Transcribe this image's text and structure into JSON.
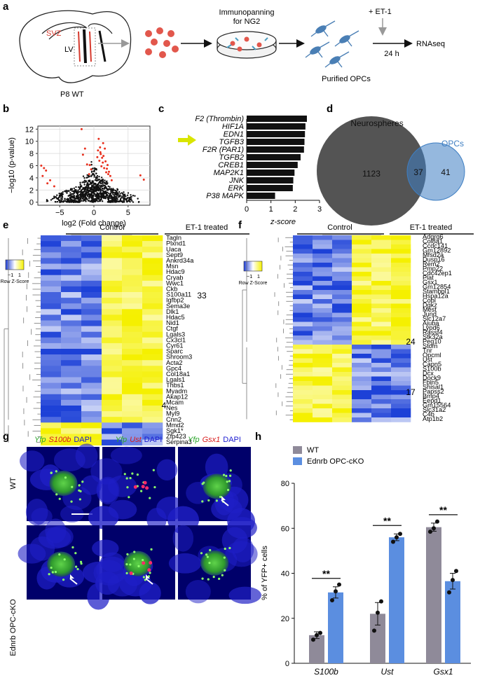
{
  "figure": {
    "panel_labels": [
      "a",
      "b",
      "c",
      "d",
      "e",
      "f",
      "g",
      "h"
    ]
  },
  "panel_a": {
    "svz_label": "SVZ",
    "lv_label": "LV",
    "brain_label": "P8 WT",
    "immunopanning_title": "Immunopanning",
    "immunopanning_subtitle": "for NG2",
    "et1_label": "+ ET-1",
    "opc_label": "Purified OPCs",
    "time_label": "24 h",
    "rnaseq_label": "RNAseq"
  },
  "panel_b": {
    "chart_data": {
      "type": "scatter",
      "title": "",
      "xlabel": "log2 (Fold change)",
      "ylabel": "−log10 (p-value)",
      "xticks": [
        "−5",
        "0",
        "5"
      ],
      "yticks": [
        "0",
        "2",
        "4",
        "6",
        "8",
        "10",
        "12"
      ],
      "xlim": [
        -8.2,
        8.2
      ],
      "ylim": [
        -0.5,
        12.5
      ],
      "grid": true,
      "highlight_color": "#e8311f",
      "points_sig": [
        [
          -7.7,
          6.0
        ],
        [
          -7.5,
          4.3
        ],
        [
          -7.3,
          5.6
        ],
        [
          -7.0,
          5.2
        ],
        [
          -6.8,
          3.1
        ],
        [
          -6.4,
          3.6
        ],
        [
          -5.8,
          2.6
        ],
        [
          -1.8,
          12.0
        ],
        [
          -1.6,
          7.8
        ],
        [
          -1.3,
          8.8
        ],
        [
          -1.0,
          6.2
        ],
        [
          -0.7,
          4.6
        ],
        [
          -0.6,
          6.1
        ],
        [
          -0.4,
          5.4
        ],
        [
          0.5,
          7.4
        ],
        [
          0.6,
          8.5
        ],
        [
          0.7,
          10.4
        ],
        [
          0.8,
          6.8
        ],
        [
          0.9,
          9.0
        ],
        [
          1.0,
          7.9
        ],
        [
          1.1,
          5.9
        ],
        [
          1.2,
          7.3
        ],
        [
          1.3,
          6.5
        ],
        [
          1.4,
          7.6
        ],
        [
          1.5,
          5.6
        ],
        [
          1.6,
          8.8
        ],
        [
          1.7,
          6.7
        ],
        [
          1.8,
          4.9
        ],
        [
          1.9,
          5.5
        ],
        [
          2.0,
          6.1
        ],
        [
          2.1,
          4.6
        ],
        [
          2.2,
          5.0
        ],
        [
          2.4,
          4.3
        ],
        [
          2.6,
          3.6
        ],
        [
          1.35,
          9.7
        ],
        [
          0.95,
          8.2
        ],
        [
          6.8,
          4.4
        ],
        [
          7.3,
          3.7
        ]
      ]
    }
  },
  "panel_c": {
    "chart_data": {
      "type": "bar",
      "orientation": "horizontal",
      "categories": [
        "F2 (Thrombin)",
        "HIF1A",
        "EDN1",
        "TGFB3",
        "F2R (PAR1)",
        "TGFB2",
        "CREB1",
        "MAP2K1",
        "JNK",
        "ERK",
        "P38 MAPK"
      ],
      "values": [
        2.48,
        2.42,
        2.4,
        2.38,
        2.36,
        2.22,
        2.1,
        1.97,
        1.92,
        1.9,
        1.17
      ],
      "xlabel": "z-score",
      "xticks": [
        "0",
        "1",
        "2",
        "3"
      ],
      "xlim": [
        0,
        3
      ],
      "highlight": "EDN1",
      "highlight_color": "#d9e500"
    }
  },
  "panel_d": {
    "chart_data": {
      "type": "venn",
      "sets": [
        {
          "name": "Neurospheres",
          "only": 1123,
          "color": "#545454"
        },
        {
          "name": "OPCs",
          "only": 41,
          "color": "#3e7ec2"
        }
      ],
      "intersection": 37
    }
  },
  "panel_e": {
    "control_label": "Control",
    "treated_label": "ET-1 treated",
    "legend_low": "−1",
    "legend_high": "1",
    "legend_title": "Row Z-Score",
    "count_up": "33",
    "count_down": "4",
    "genes": [
      "Tagln",
      "Plxnd1",
      "Uaca",
      "Sept9",
      "Ankrd34a",
      "Msn",
      "Hdac9",
      "Cryab",
      "Wwc1",
      "Ckb",
      "S100a11",
      "Igfbp2",
      "Sema3e",
      "Dlk1",
      "Hdac5",
      "Nid1",
      "Ctgf",
      "Lgals3",
      "Cx3cl1",
      "Cyr61",
      "Sparc",
      "Shroom3",
      "Acta2",
      "Gpc4",
      "Col18a1",
      "Lgals1",
      "Thbs1",
      "Myadm",
      "Akap12",
      "Mcam",
      "Nes",
      "Myl9",
      "Cnn2",
      "Mmd2",
      "Sgk1*",
      "Zfp423",
      "Serpina3"
    ]
  },
  "panel_f": {
    "control_label": "Control",
    "treated_label": "ET-1 treated",
    "legend_low": "−1",
    "legend_high": "1",
    "legend_title": "Row Z-Score",
    "count_up": "24",
    "count_down": "17",
    "genes": [
      "Adgrg6",
      "Col8a1",
      "Ccdc141",
      "Gm12892",
      "Mfsd2a",
      "Dusp16",
      "Rem2",
      "Pmp22",
      "Cdc42ep1",
      "Plat",
      "Gsx1",
      "Gm12854",
      "Stambpl1",
      "Hspa12a",
      "Cobl",
      "Dgkz",
      "Mest",
      "Jund",
      "Slc12a7",
      "Ajuba",
      "Lypd6",
      "Rassf4",
      "Stk32a",
      "Peg10",
      "Stom",
      "Tnr",
      "Opcml",
      "Ust",
      "Capn5",
      "S100b",
      "Dcx",
      "Dock9",
      "Fbln5",
      "Shisal1",
      "Papss2",
      "Bmp4",
      "Eepd1",
      "Gm15564",
      "Slc31a2",
      "C4b",
      "Atp1b2"
    ]
  },
  "panel_g": {
    "columns": [
      {
        "yfp": "Yfp",
        "marker": "S100b",
        "dapi": "DAPI"
      },
      {
        "yfp": "Yfp",
        "marker": "Ust",
        "dapi": "DAPI"
      },
      {
        "yfp": "Yfp",
        "marker": "Gsx1",
        "dapi": "DAPI"
      }
    ],
    "rows": [
      "WT",
      "Ednrb OPC-cKO"
    ]
  },
  "panel_h": {
    "chart_data": {
      "type": "bar",
      "categories": [
        "S100b",
        "Ust",
        "Gsx1"
      ],
      "series": [
        {
          "name": "WT",
          "color": "#8f8a99",
          "values": [
            12.5,
            22.0,
            60.5
          ],
          "errors": [
            1.5,
            5.0,
            1.8
          ],
          "points": [
            [
              10.5,
              12.5,
              13.5
            ],
            [
              14.5,
              22.5,
              27.5
            ],
            [
              58.5,
              60.0,
              63.0
            ]
          ]
        },
        {
          "name": "Ednrb OPC-cKO",
          "color": "#5b8ee0",
          "values": [
            31.5,
            56.0,
            36.5
          ],
          "errors": [
            2.5,
            1.5,
            3.5
          ],
          "points": [
            [
              28.0,
              32.0,
              35.0
            ],
            [
              54.0,
              56.0,
              57.5
            ],
            [
              31.5,
              37.0,
              41.0
            ]
          ]
        }
      ],
      "ylabel": "% of YFP+ cells",
      "yticks": [
        "0",
        "20",
        "40",
        "60",
        "80"
      ],
      "ylim": [
        0,
        80
      ],
      "significance": [
        "**",
        "**",
        "**"
      ]
    }
  }
}
